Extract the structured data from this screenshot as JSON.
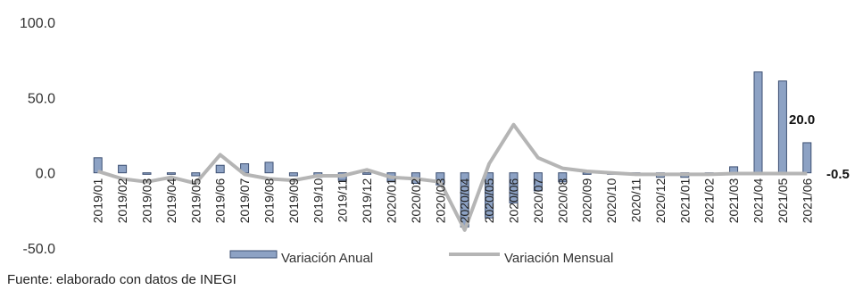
{
  "chart_data": {
    "type": "bar",
    "categories": [
      "2019/01",
      "2019/02",
      "2019/03",
      "2019/04",
      "2019/05",
      "2019/06",
      "2019/07",
      "2019/08",
      "2019/09",
      "2019/10",
      "2019/11",
      "2019/12",
      "2020/01",
      "2020/02",
      "2020/03",
      "2020/04",
      "2020/05",
      "2020/06",
      "2020/07",
      "2020/08",
      "2020/09",
      "2020/10",
      "2020/11",
      "2020/12",
      "2021/01",
      "2021/02",
      "2021/03",
      "2021/04",
      "2021/05",
      "2021/06"
    ],
    "series": [
      {
        "name": "Variación Anual",
        "type": "bar",
        "color": "#8da2c4",
        "edge_color": "#3c4f72",
        "values": [
          10,
          5,
          -1,
          -1,
          -2,
          5,
          6,
          7,
          -2,
          -3,
          -5,
          -1,
          -6,
          -7,
          -8,
          -36,
          -30,
          -20,
          -12,
          -6,
          -1,
          -1,
          -1,
          -3,
          -3,
          -1,
          4,
          67,
          61,
          20
        ]
      },
      {
        "name": "Variación Mensual",
        "type": "line",
        "color": "#b5b5b5",
        "values": [
          1,
          -4,
          -6,
          -3,
          -7,
          12,
          -1,
          -4,
          -5,
          -2,
          -2,
          2,
          -3,
          -4,
          -6,
          -38,
          6,
          32,
          10,
          3,
          1,
          0,
          -1,
          -1,
          -1,
          -1,
          -0.5,
          -0.5,
          -0.5,
          -0.5
        ]
      }
    ],
    "ylim": [
      -50,
      100
    ],
    "yticks": [
      "100.0",
      "50.0",
      "0.0",
      "-50.0"
    ],
    "end_labels": {
      "bar": "20.0",
      "line": "-0.5"
    },
    "grid": false,
    "legend_position": "bottom"
  },
  "footer": "Fuente: elaborado con datos de INEGI"
}
